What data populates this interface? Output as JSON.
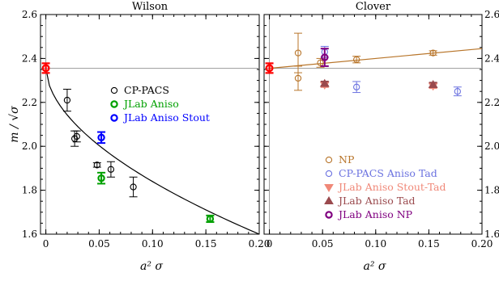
{
  "chart_data": [
    {
      "type": "scatter",
      "title": "Wilson",
      "xlabel": "a² σ",
      "ylabel": "m / √σ",
      "xlim": [
        -0.005,
        0.2
      ],
      "ylim": [
        1.6,
        2.6
      ],
      "x_ticks": [
        "0",
        "0.05",
        "0.10",
        "0.15",
        "0.20"
      ],
      "y_ticks": [
        "1.6",
        "1.8",
        "2.0",
        "2.2",
        "2.4",
        "2.6"
      ],
      "y_ticks_side": "left",
      "legend_position": "center-right",
      "reference_line_y": 2.355,
      "continuum_point": {
        "x": 0,
        "y": 2.356,
        "err": 0.022,
        "color": "#ff0000"
      },
      "fit_curve": {
        "style": "curve decreasing from continuum through CP-PACS points",
        "x_end": 0.2,
        "y_end": 1.6
      },
      "series": [
        {
          "name": "CP-PACS",
          "color": "#000000",
          "marker": "circle",
          "points": [
            {
              "x": 0.02,
              "y": 2.21,
              "err": 0.05
            },
            {
              "x": 0.027,
              "y": 2.035,
              "err": 0.035
            },
            {
              "x": 0.029,
              "y": 2.045,
              "err": 0.025
            },
            {
              "x": 0.048,
              "y": 1.915,
              "err": 0.01
            },
            {
              "x": 0.061,
              "y": 1.895,
              "err": 0.035
            },
            {
              "x": 0.082,
              "y": 1.815,
              "err": 0.045
            },
            {
              "x": 0.154,
              "y": 1.67,
              "err": 0.015
            }
          ]
        },
        {
          "name": "JLab Aniso",
          "color": "#00a000",
          "marker": "circle",
          "points": [
            {
              "x": 0.052,
              "y": 1.855,
              "err": 0.025
            },
            {
              "x": 0.154,
              "y": 1.67,
              "err": 0.015
            }
          ]
        },
        {
          "name": "JLab Aniso Stout",
          "color": "#0000ff",
          "marker": "circle",
          "points": [
            {
              "x": 0.052,
              "y": 2.04,
              "err": 0.025
            }
          ]
        }
      ]
    },
    {
      "type": "scatter",
      "title": "Clover",
      "xlabel": "a² σ",
      "xlim": [
        -0.005,
        0.2
      ],
      "ylim": [
        1.6,
        2.6
      ],
      "x_ticks": [
        "0",
        "0.05",
        "0.10",
        "0.15",
        "0.20"
      ],
      "y_ticks": [
        "1.6",
        "1.8",
        "2.0",
        "2.2",
        "2.4",
        "2.6"
      ],
      "y_ticks_side": "right",
      "legend_position": "bottom-right",
      "reference_line_y": 2.355,
      "continuum_point": {
        "x": 0,
        "y": 2.356,
        "err": 0.022,
        "color": "#ff0000"
      },
      "fit_line": {
        "x_start": 0,
        "y_start": 2.355,
        "x_end": 0.2,
        "y_end": 2.445
      },
      "series": [
        {
          "name": "NP",
          "color": "#b8752a",
          "marker": "circle",
          "points": [
            {
              "x": 0.027,
              "y": 2.425,
              "err": 0.09
            },
            {
              "x": 0.027,
              "y": 2.31,
              "err": 0.055
            },
            {
              "x": 0.048,
              "y": 2.38,
              "err": 0.02
            },
            {
              "x": 0.082,
              "y": 2.395,
              "err": 0.015
            },
            {
              "x": 0.154,
              "y": 2.425,
              "err": 0.01
            }
          ]
        },
        {
          "name": "CP-PACS Aniso Tad",
          "color": "#6b72e0",
          "marker": "circle",
          "points": [
            {
              "x": 0.052,
              "y": 2.43,
              "err": 0.025
            },
            {
              "x": 0.082,
              "y": 2.27,
              "err": 0.025
            },
            {
              "x": 0.177,
              "y": 2.25,
              "err": 0.02
            }
          ]
        },
        {
          "name": "JLab Aniso Stout-Tad",
          "color": "#f08878",
          "marker": "triangle-down",
          "points": [
            {
              "x": 0.052,
              "y": 2.28,
              "err": 0.01
            },
            {
              "x": 0.154,
              "y": 2.275,
              "err": 0.01
            }
          ]
        },
        {
          "name": "JLab Aniso Tad",
          "color": "#9a4a4e",
          "marker": "triangle-up",
          "points": [
            {
              "x": 0.052,
              "y": 2.285,
              "err": 0.01
            },
            {
              "x": 0.154,
              "y": 2.28,
              "err": 0.01
            }
          ]
        },
        {
          "name": "JLab Aniso NP",
          "color": "#800080",
          "marker": "circle",
          "points": [
            {
              "x": 0.052,
              "y": 2.405,
              "err": 0.04
            }
          ]
        }
      ]
    }
  ]
}
